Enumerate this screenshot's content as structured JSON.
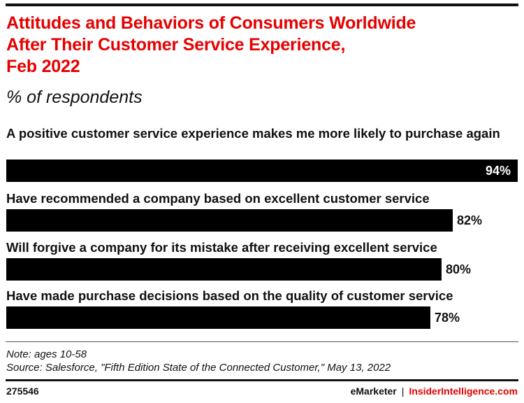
{
  "header": {
    "title": "Attitudes and Behaviors of Consumers Worldwide\nAfter Their Customer Service Experience,\nFeb 2022",
    "subtitle": "% of respondents"
  },
  "chart_data": {
    "type": "bar",
    "orientation": "horizontal",
    "title": "Attitudes and Behaviors of Consumers Worldwide After Their Customer Service Experience, Feb 2022",
    "subtitle": "% of respondents",
    "categories": [
      "A positive customer service experience makes me more likely to purchase again",
      "Have recommended a company based on excellent customer service",
      "Will forgive a company for its mistake after receiving excellent service",
      "Have made purchase decisions based on the quality of customer service"
    ],
    "values": [
      94,
      82,
      80,
      78
    ],
    "value_labels": [
      "94%",
      "82%",
      "80%",
      "78%"
    ],
    "xlim": [
      0,
      94
    ],
    "bar_color": "#000000",
    "grid": false,
    "legend": "none"
  },
  "footer": {
    "note": "Note: ages 10-58",
    "source": "Source: Salesforce, \"Fifth Edition State of the Connected Customer,\" May 13, 2022",
    "chart_id": "275546",
    "brand_primary": "eMarketer",
    "brand_separator": "|",
    "brand_secondary": "InsiderIntelligence.com"
  },
  "colors": {
    "title": "#e60000",
    "bar": "#000000",
    "brand_accent": "#e60000"
  }
}
